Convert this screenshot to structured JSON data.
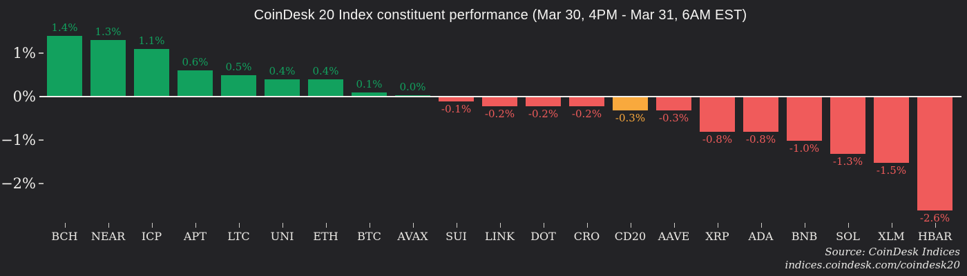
{
  "chart_data": {
    "type": "bar",
    "title": "CoinDesk 20 Index constituent performance (Mar 30, 4PM - Mar 31, 6AM EST)",
    "categories": [
      "BCH",
      "NEAR",
      "ICP",
      "APT",
      "LTC",
      "UNI",
      "ETH",
      "BTC",
      "AVAX",
      "SUI",
      "LINK",
      "DOT",
      "CRO",
      "CD20",
      "AAVE",
      "XRP",
      "ADA",
      "BNB",
      "SOL",
      "XLM",
      "HBAR"
    ],
    "values": [
      1.4,
      1.3,
      1.1,
      0.6,
      0.5,
      0.4,
      0.4,
      0.1,
      0.0,
      -0.1,
      -0.2,
      -0.2,
      -0.2,
      -0.3,
      -0.3,
      -0.8,
      -0.8,
      -1.0,
      -1.3,
      -1.5,
      -2.6
    ],
    "value_labels": [
      "1.4%",
      "1.3%",
      "1.1%",
      "0.6%",
      "0.5%",
      "0.4%",
      "0.4%",
      "0.1%",
      "0.0%",
      "-0.1%",
      "-0.2%",
      "-0.2%",
      "-0.2%",
      "-0.3%",
      "-0.3%",
      "-0.8%",
      "-0.8%",
      "-1.0%",
      "-1.3%",
      "-1.5%",
      "-2.6%"
    ],
    "bar_color_keys": [
      "positive",
      "positive",
      "positive",
      "positive",
      "positive",
      "positive",
      "positive",
      "positive",
      "positive",
      "negative",
      "negative",
      "negative",
      "negative",
      "highlight",
      "negative",
      "negative",
      "negative",
      "negative",
      "negative",
      "negative",
      "negative"
    ],
    "yticks": [
      {
        "label": "1%",
        "value": 1
      },
      {
        "label": "0%",
        "value": 0
      },
      {
        "label": "−1%",
        "value": -1
      },
      {
        "label": "−2%",
        "value": -2
      }
    ],
    "ylim": [
      -2.9,
      1.55
    ],
    "xlabel": "",
    "ylabel": "",
    "grid": false,
    "legend": false,
    "zero_line": true,
    "palette": {
      "positive": "#12a15e",
      "negative": "#f05b5b",
      "highlight": "#f9a93d",
      "background": "#232326",
      "axis_line": "#f2f0ec",
      "text": "#f0efec"
    }
  },
  "source": {
    "line1": "Source: CoinDesk Indices",
    "line2": "indices.coindesk.com/coindesk20"
  }
}
